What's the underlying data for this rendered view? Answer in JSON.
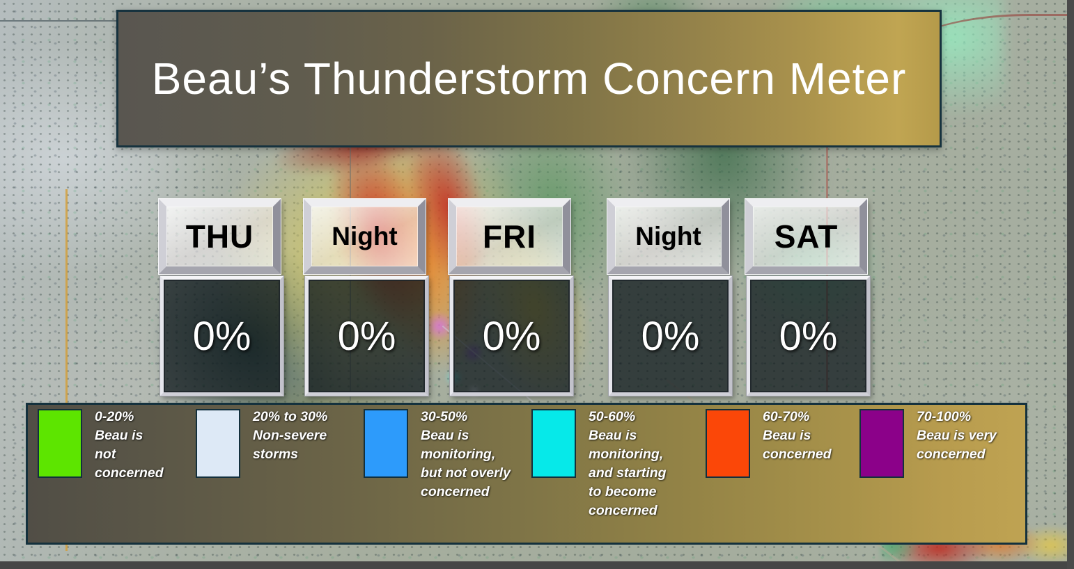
{
  "title": {
    "text": "Beau’s Thunderstorm Concern Meter"
  },
  "forecast": {
    "periods": [
      {
        "label": "THU",
        "value": "0%"
      },
      {
        "label": "Night",
        "value": "0%"
      },
      {
        "label": "FRI",
        "value": "0%"
      },
      {
        "label": "Night",
        "value": "0%"
      },
      {
        "label": "SAT",
        "value": "0%"
      }
    ]
  },
  "legend": {
    "items": [
      {
        "color": "#5de500",
        "lines": [
          "0-20%",
          "Beau is",
          "not",
          "concerned"
        ]
      },
      {
        "color": "#dde9f6",
        "lines": [
          "20% to 30%",
          "Non-severe",
          "storms"
        ]
      },
      {
        "color": "#2d9bfb",
        "lines": [
          "30-50%",
          "Beau is",
          "monitoring,",
          "but not overly",
          "concerned"
        ]
      },
      {
        "color": "#06e9e9",
        "lines": [
          "50-60%",
          "Beau is",
          "monitoring,",
          "and starting",
          "to become",
          "concerned"
        ]
      },
      {
        "color": "#fb4708",
        "lines": [
          "60-70%",
          "Beau is",
          "concerned"
        ]
      },
      {
        "color": "#8b0189",
        "lines": [
          "70-100%",
          "Beau is very",
          "concerned"
        ]
      }
    ]
  },
  "chart_data": {
    "type": "bar",
    "title": "Beau's Thunderstorm Concern Meter",
    "categories": [
      "THU",
      "Night",
      "FRI",
      "Night",
      "SAT"
    ],
    "values": [
      0,
      0,
      0,
      0,
      0
    ],
    "unit": "%",
    "value_labels": [
      "0%",
      "0%",
      "0%",
      "0%",
      "0%"
    ],
    "ylim": [
      0,
      100
    ],
    "legend_position": "bottom",
    "legend": [
      {
        "range": "0-20%",
        "meaning": "Beau is not concerned",
        "color": "#5de500"
      },
      {
        "range": "20% to 30%",
        "meaning": "Non-severe storms",
        "color": "#dde9f6"
      },
      {
        "range": "30-50%",
        "meaning": "Beau is monitoring, but not overly concerned",
        "color": "#2d9bfb"
      },
      {
        "range": "50-60%",
        "meaning": "Beau is monitoring, and starting to become concerned",
        "color": "#06e9e9"
      },
      {
        "range": "60-70%",
        "meaning": "Beau is concerned",
        "color": "#fb4708"
      },
      {
        "range": "70-100%",
        "meaning": "Beau is very concerned",
        "color": "#8b0189"
      }
    ]
  }
}
